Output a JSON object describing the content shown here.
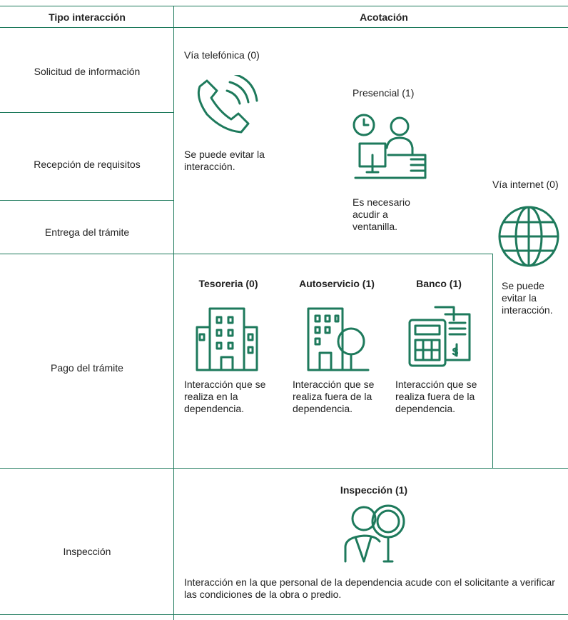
{
  "header": {
    "columns": [
      "Tipo interacción",
      "Acotación"
    ]
  },
  "rows": [
    "Solicitud de información",
    "Recepción de requisitos",
    "Entrega del trámite",
    "Pago del trámite",
    "Inspección"
  ],
  "options": {
    "telefonica": {
      "title": "Vía telefónica (0)",
      "text": "Se puede evitar la interacción."
    },
    "presencial": {
      "title": "Presencial (1)",
      "text": "Es necesario acudir a ventanilla."
    },
    "internet": {
      "title": "Vía internet (0)",
      "text": "Se puede evitar la interacción."
    },
    "tesoreria": {
      "title": "Tesoreria (0)",
      "text": "Interacción que se realiza en la dependencia."
    },
    "autoservicio": {
      "title": "Autoservicio (1)",
      "text": "Interacción que se realiza fuera de la dependencia."
    },
    "banco": {
      "title": "Banco (1)",
      "text": "Interacción que se realiza fuera de la dependencia."
    },
    "inspeccion": {
      "title": "Inspección (1)",
      "text": "Interacción en la que personal de la dependencia acude con el solicitante a verificar las condiciones de la obra o predio."
    }
  }
}
